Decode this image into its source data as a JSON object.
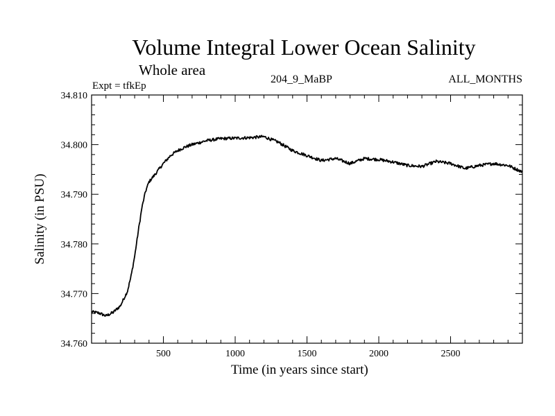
{
  "header": {
    "title": "Volume Integral Lower Ocean Salinity",
    "subtitle": "Whole area",
    "expt": "Expt = tfkEp",
    "run": "204_9_MaBP",
    "months": "ALL_MONTHS"
  },
  "chart_data": {
    "type": "line",
    "title": "Volume Integral Lower Ocean Salinity",
    "subtitle": "Whole area",
    "xlabel": "Time (in years since start)",
    "ylabel": "Salinity (in PSU)",
    "xlim": [
      0,
      3000
    ],
    "ylim": [
      34.76,
      34.81
    ],
    "x_ticks": [
      500,
      1000,
      1500,
      2000,
      2500
    ],
    "x_tick_labels": [
      "500",
      "1000",
      "1500",
      "2000",
      "2500"
    ],
    "y_ticks": [
      34.76,
      34.77,
      34.78,
      34.79,
      34.8,
      34.81
    ],
    "y_tick_labels": [
      "34.760",
      "34.770",
      "34.780",
      "34.790",
      "34.800",
      "34.810"
    ],
    "grid": false,
    "series": [
      {
        "color": "#000000",
        "x": [
          0,
          50,
          100,
          150,
          200,
          250,
          275,
          300,
          325,
          350,
          375,
          400,
          450,
          500,
          550,
          600,
          650,
          700,
          800,
          900,
          1000,
          1100,
          1200,
          1300,
          1400,
          1500,
          1600,
          1700,
          1800,
          1900,
          2000,
          2100,
          2200,
          2300,
          2400,
          2500,
          2600,
          2700,
          2800,
          2900,
          3000
        ],
        "values": [
          34.7663,
          34.7661,
          34.7655,
          34.7662,
          34.7675,
          34.7705,
          34.7735,
          34.7775,
          34.7825,
          34.7872,
          34.7905,
          34.7925,
          34.7943,
          34.7962,
          34.7978,
          34.7988,
          34.7995,
          34.8,
          34.8008,
          34.8012,
          34.8013,
          34.8014,
          34.8016,
          34.8005,
          34.7988,
          34.7978,
          34.7968,
          34.7972,
          34.7962,
          34.7972,
          34.797,
          34.7965,
          34.7958,
          34.7956,
          34.7966,
          34.7962,
          34.7952,
          34.7958,
          34.7962,
          34.7958,
          34.7945
        ]
      }
    ]
  }
}
